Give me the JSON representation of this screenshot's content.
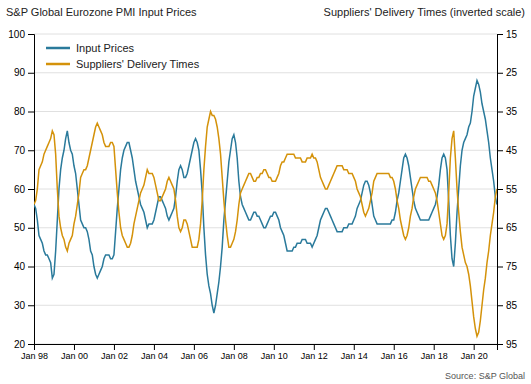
{
  "chart_data": {
    "type": "line",
    "ylabel": "S&P Global Eurozone PMI Input Prices",
    "y2label": "Suppliers' Delivery Times (inverted scale)",
    "annotations": [
      "Source: S&P Global"
    ],
    "ylim": [
      20,
      100
    ],
    "yticks": [
      20,
      30,
      40,
      50,
      60,
      70,
      80,
      90,
      100
    ],
    "y2lim": [
      95,
      15
    ],
    "y2ticks": [
      15,
      25,
      35,
      45,
      55,
      65,
      75,
      85,
      95
    ],
    "grid": true,
    "legend": "upper left",
    "categories": [
      "Jan 98",
      null,
      null,
      null,
      null,
      null,
      null,
      null,
      null,
      null,
      null,
      null,
      null,
      null,
      null,
      null,
      null,
      null,
      null,
      null,
      null,
      null,
      null,
      null,
      "Jan 00",
      null,
      null,
      null,
      null,
      null,
      null,
      null,
      null,
      null,
      null,
      null,
      null,
      null,
      null,
      null,
      null,
      null,
      null,
      null,
      null,
      null,
      null,
      null,
      "Jan 02",
      null,
      null,
      null,
      null,
      null,
      null,
      null,
      null,
      null,
      null,
      null,
      null,
      null,
      null,
      null,
      null,
      null,
      null,
      null,
      null,
      null,
      null,
      null,
      "Jan 04",
      null,
      null,
      null,
      null,
      null,
      null,
      null,
      null,
      null,
      null,
      null,
      null,
      null,
      null,
      null,
      null,
      null,
      null,
      null,
      null,
      null,
      null,
      null,
      "Jan 06",
      null,
      null,
      null,
      null,
      null,
      null,
      null,
      null,
      null,
      null,
      null,
      null,
      null,
      null,
      null,
      null,
      null,
      null,
      null,
      null,
      null,
      null,
      null,
      "Jan 08",
      null,
      null,
      null,
      null,
      null,
      null,
      null,
      null,
      null,
      null,
      null,
      null,
      null,
      null,
      null,
      null,
      null,
      null,
      null,
      null,
      null,
      null,
      null,
      "Jan 10",
      null,
      null,
      null,
      null,
      null,
      null,
      null,
      null,
      null,
      null,
      null,
      null,
      null,
      null,
      null,
      null,
      null,
      null,
      null,
      null,
      null,
      null,
      null,
      "Jan 12",
      null,
      null,
      null,
      null,
      null,
      null,
      null,
      null,
      null,
      null,
      null,
      null,
      null,
      null,
      null,
      null,
      null,
      null,
      null,
      null,
      null,
      null,
      null,
      "Jan 14",
      null,
      null,
      null,
      null,
      null,
      null,
      null,
      null,
      null,
      null,
      null,
      null,
      null,
      null,
      null,
      null,
      null,
      null,
      null,
      null,
      null,
      null,
      null,
      "Jan 16",
      null,
      null,
      null,
      null,
      null,
      null,
      null,
      null,
      null,
      null,
      null,
      null,
      null,
      null,
      null,
      null,
      null,
      null,
      null,
      null,
      null,
      null,
      null,
      "Jan 18",
      null,
      null,
      null,
      null,
      null,
      null,
      null,
      null,
      null,
      null,
      null,
      null,
      null,
      null,
      null,
      null,
      null,
      null,
      null,
      null,
      null,
      null,
      null,
      "Jan 20",
      null,
      null,
      null,
      null,
      null,
      null,
      null,
      null,
      null,
      null,
      null,
      null,
      null,
      null
    ],
    "series": [
      {
        "name": "Input Prices",
        "color": "#2a7a9b",
        "values": [
          56,
          55,
          52,
          48,
          47,
          46,
          44,
          43,
          43,
          42,
          41,
          37,
          38,
          44,
          52,
          60,
          65,
          68,
          70,
          73,
          75,
          72,
          70,
          69,
          66,
          64,
          60,
          56,
          52,
          51,
          50,
          50,
          49,
          47,
          44,
          43,
          40,
          38,
          37,
          38,
          39,
          40,
          42,
          43,
          43,
          43,
          42,
          42,
          43,
          49,
          55,
          60,
          65,
          68,
          70,
          71,
          72,
          72,
          70,
          68,
          65,
          62,
          60,
          58,
          56,
          55,
          54,
          52,
          50,
          51,
          51,
          51,
          52,
          54,
          56,
          58,
          58,
          57,
          56,
          55,
          53,
          52,
          53,
          54,
          55,
          58,
          62,
          65,
          66,
          65,
          63,
          63,
          64,
          66,
          68,
          70,
          72,
          73,
          72,
          70,
          65,
          59,
          50,
          43,
          38,
          35,
          33,
          30,
          28,
          30,
          33,
          36,
          40,
          45,
          52,
          57,
          62,
          67,
          70,
          73,
          74,
          72,
          68,
          62,
          58,
          56,
          55,
          54,
          53,
          52,
          52,
          53,
          54,
          54,
          53,
          53,
          52,
          51,
          50,
          50,
          51,
          52,
          53,
          53,
          54,
          54,
          53,
          52,
          50,
          49,
          48,
          46,
          44,
          44,
          44,
          44,
          45,
          45,
          46,
          46,
          46,
          47,
          47,
          47,
          46,
          46,
          46,
          45,
          46,
          47,
          48,
          50,
          52,
          53,
          54,
          55,
          55,
          54,
          53,
          52,
          51,
          50,
          49,
          49,
          49,
          49,
          50,
          50,
          50,
          51,
          51,
          51,
          52,
          53,
          55,
          56,
          57,
          59,
          61,
          62,
          62,
          61,
          59,
          56,
          53,
          52,
          51,
          51,
          51,
          51,
          51,
          51,
          51,
          51,
          51,
          52,
          52,
          54,
          57,
          59,
          62,
          65,
          68,
          69,
          68,
          66,
          63,
          60,
          57,
          55,
          54,
          53,
          52,
          52,
          52,
          52,
          52,
          52,
          53,
          54,
          55,
          56,
          58,
          61,
          65,
          68,
          69,
          68,
          65,
          57,
          48,
          42,
          40,
          46,
          54,
          60,
          66,
          70,
          72,
          73,
          74,
          76,
          77,
          80,
          84,
          86,
          88,
          87,
          85,
          82,
          80,
          78,
          75,
          72,
          68,
          65,
          62,
          58,
          56
        ]
      },
      {
        "name": "Suppliers' Delivery Times",
        "color": "#d4920a",
        "axis": "y2",
        "values": [
          59,
          58,
          55,
          50,
          49,
          48,
          46,
          45,
          44,
          43,
          42,
          40,
          41,
          46,
          55,
          62,
          65,
          67,
          68,
          70,
          71,
          69,
          68,
          67,
          64,
          62,
          59,
          56,
          52,
          51,
          50,
          50,
          49,
          47,
          45,
          43,
          41,
          39,
          38,
          39,
          40,
          41,
          43,
          44,
          44,
          44,
          43,
          43,
          44,
          50,
          56,
          61,
          65,
          67,
          68,
          69,
          70,
          70,
          69,
          67,
          64,
          62,
          60,
          58,
          56,
          55,
          54,
          52,
          50,
          51,
          51,
          51,
          52,
          54,
          56,
          58,
          58,
          57,
          56,
          55,
          53,
          52,
          53,
          54,
          55,
          58,
          62,
          65,
          66,
          65,
          63,
          63,
          64,
          66,
          68,
          70,
          70,
          70,
          70,
          68,
          64,
          58,
          50,
          44,
          39,
          37,
          35,
          36,
          36,
          37,
          39,
          42,
          46,
          52,
          58,
          63,
          67,
          70,
          70,
          69,
          68,
          66,
          63,
          59,
          56,
          55,
          54,
          53,
          52,
          51,
          51,
          52,
          53,
          53,
          52,
          52,
          51,
          51,
          50,
          50,
          51,
          52,
          52,
          53,
          53,
          53,
          52,
          51,
          49,
          48,
          48,
          47,
          46,
          46,
          46,
          46,
          46,
          47,
          47,
          47,
          47,
          48,
          48,
          48,
          47,
          47,
          47,
          46,
          47,
          47,
          48,
          50,
          52,
          53,
          54,
          55,
          55,
          54,
          53,
          52,
          51,
          50,
          49,
          49,
          49,
          49,
          50,
          50,
          50,
          51,
          51,
          51,
          52,
          53,
          55,
          56,
          57,
          59,
          61,
          62,
          61,
          60,
          58,
          56,
          53,
          52,
          51,
          51,
          51,
          51,
          51,
          51,
          51,
          51,
          52,
          52,
          53,
          55,
          58,
          60,
          63,
          65,
          67,
          68,
          67,
          65,
          62,
          60,
          57,
          55,
          54,
          53,
          52,
          52,
          52,
          52,
          52,
          53,
          53,
          54,
          55,
          56,
          58,
          61,
          64,
          67,
          68,
          67,
          64,
          56,
          47,
          42,
          40,
          47,
          55,
          61,
          66,
          70,
          72,
          74,
          75,
          77,
          80,
          84,
          88,
          91,
          93,
          92,
          89,
          85,
          81,
          78,
          74,
          71,
          67,
          64,
          61,
          57,
          55
        ]
      }
    ]
  }
}
